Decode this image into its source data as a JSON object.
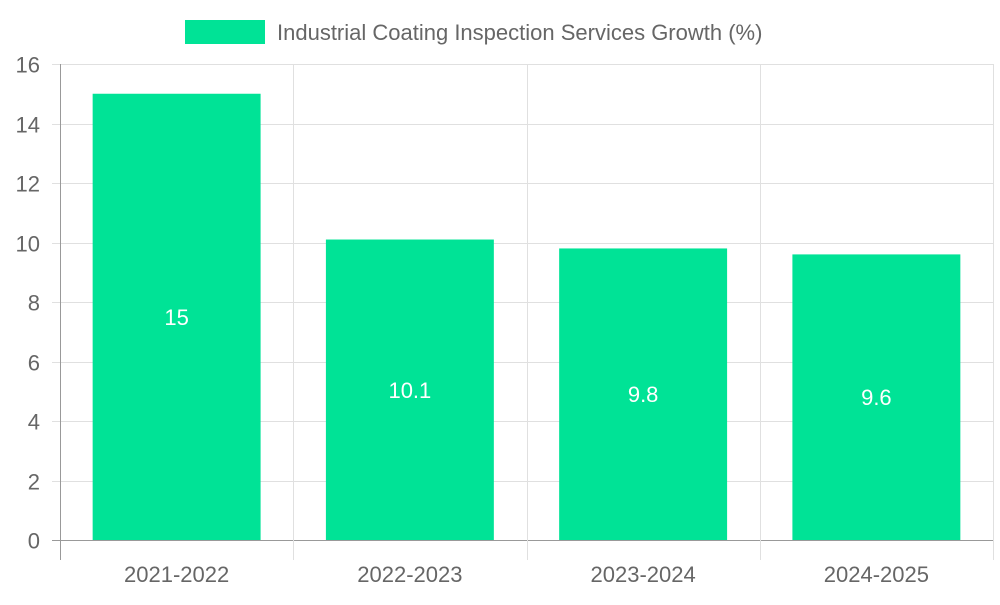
{
  "chart_data": {
    "type": "bar",
    "title": "",
    "xlabel": "",
    "ylabel": "",
    "categories": [
      "2021-2022",
      "2022-2023",
      "2023-2024",
      "2024-2025"
    ],
    "series": [
      {
        "name": "Industrial Coating Inspection Services Growth (%)",
        "values": [
          15,
          10.1,
          9.8,
          9.6
        ],
        "color": "#00e396"
      }
    ],
    "data_labels": [
      "15",
      "10.1",
      "9.8",
      "9.6"
    ],
    "ylim": [
      0,
      16
    ],
    "yticks": [
      0,
      2,
      4,
      6,
      8,
      10,
      12,
      14,
      16
    ],
    "grid": true,
    "legend_position": "top-center",
    "colors": {
      "bar": "#00e396",
      "grid": "#e0e0e0",
      "axis": "#999999",
      "tick_text": "#666666",
      "data_label": "#ffffff",
      "legend_text": "#666666"
    }
  }
}
